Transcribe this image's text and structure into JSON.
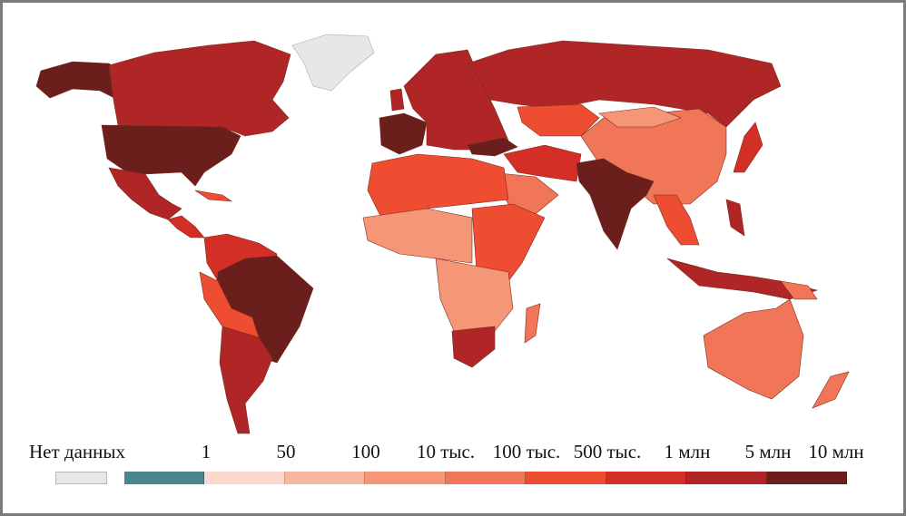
{
  "legend": {
    "no_data_label": "Нет данных",
    "no_data_color": "#e6e7e9",
    "labels": [
      "1",
      "50",
      "100",
      "10 тыс.",
      "100 тыс.",
      "500 тыс.",
      "1 млн",
      "5 млн",
      "10 млн"
    ],
    "colors": [
      "#4a878c",
      "#fbd9cd",
      "#f7b6a0",
      "#f59677",
      "#f07657",
      "#ee4d31",
      "#d32f26",
      "#b02626",
      "#6b1f1d"
    ]
  }
}
